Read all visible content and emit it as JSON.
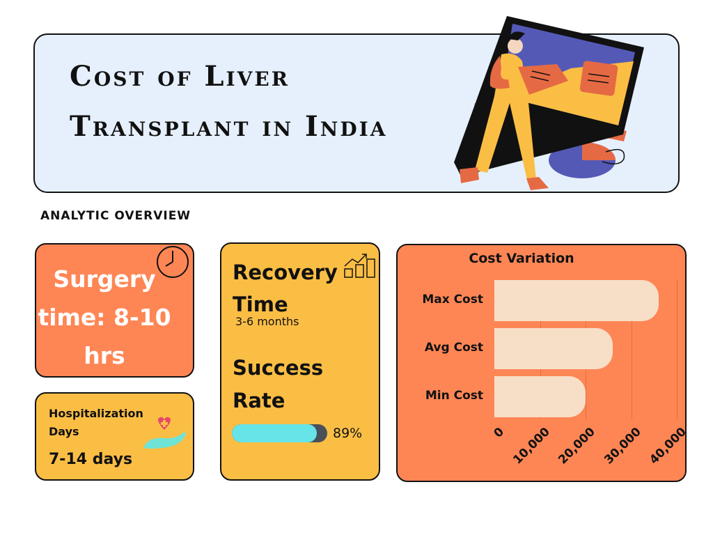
{
  "header": {
    "title_line1": "Cost of Liver",
    "title_line2": "Transplant in India",
    "illustration": "person-carrying-computer-monitor-illustration"
  },
  "section_label": "ANALYTIC OVERVIEW",
  "cards": {
    "surgery": {
      "text": "Surgery time: 8-10 hrs",
      "icon": "clock-icon",
      "color": "#fe8655"
    },
    "hospitalization": {
      "label": "Hospitalization Days",
      "value": "7-14 days",
      "icon": "heart-in-hand-icon",
      "color": "#fbbe45"
    },
    "recovery": {
      "title": "Recovery Time",
      "value": "3-6 months",
      "icon": "growth-chart-icon",
      "color": "#fbbe45"
    },
    "success": {
      "title": "Success Rate",
      "percent": 89,
      "value_label": "89%",
      "fill_color": "#67e4e8",
      "track_color": "#4a505a"
    }
  },
  "chart_data": {
    "type": "bar",
    "orientation": "horizontal",
    "title": "Cost Variation",
    "categories": [
      "Max Cost",
      "Avg Cost",
      "Min Cost"
    ],
    "values": [
      36000,
      26000,
      20000
    ],
    "xlabel": "",
    "ylabel": "",
    "xlim": [
      0,
      40000
    ],
    "x_ticks": [
      "0",
      "10,000",
      "20,000",
      "30,000",
      "40,000"
    ],
    "x_tick_values": [
      0,
      10000,
      20000,
      30000,
      40000
    ],
    "grid": true,
    "legend": null,
    "bar_color": "#f7dfc7",
    "background_color": "#fe8655"
  }
}
